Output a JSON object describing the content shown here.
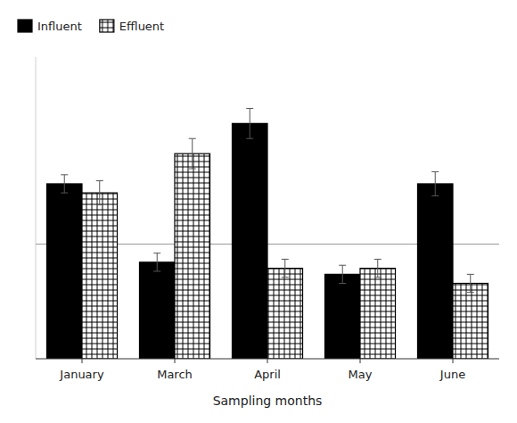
{
  "chart_data": {
    "type": "bar",
    "xlabel": "Sampling months",
    "categories": [
      "January",
      "March",
      "April",
      "May",
      "June"
    ],
    "series": [
      {
        "name": "Influent",
        "color": "#000000",
        "values": [
          58,
          32,
          78,
          28,
          58
        ],
        "errors": [
          3,
          3,
          5,
          3,
          4
        ]
      },
      {
        "name": "Effluent",
        "color": "#ffffff",
        "values": [
          55,
          68,
          30,
          30,
          25
        ],
        "errors": [
          4,
          5,
          3,
          3,
          3
        ]
      }
    ],
    "reference_line": 38,
    "ylim": [
      0,
      100
    ],
    "tick_labels": "x",
    "legend": "upper left"
  }
}
